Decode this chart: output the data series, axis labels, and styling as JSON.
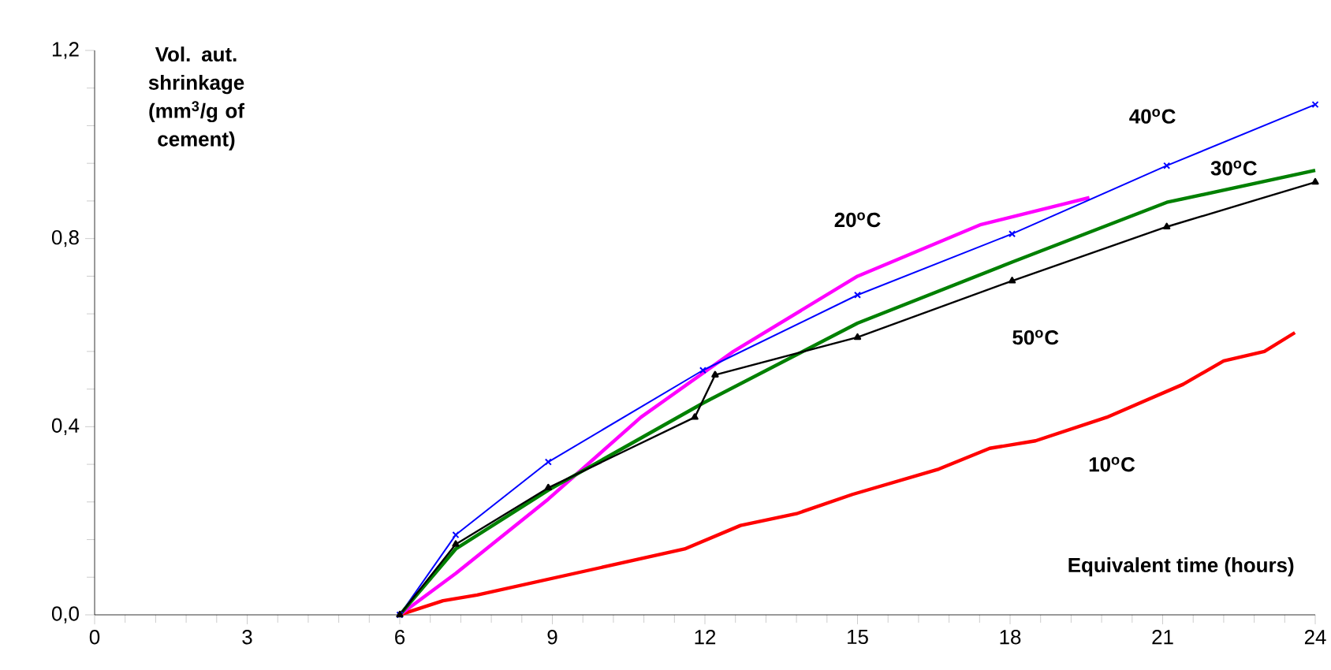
{
  "chart_data": {
    "type": "line",
    "ylabel": "Vol. aut. shrinkage (mm$^{3}$/g of cement)",
    "xlabel": "Equivalent time (hours)",
    "xlim": [
      0,
      24
    ],
    "ylim": [
      0,
      1.2
    ],
    "xticks": [
      0,
      3,
      6,
      9,
      12,
      15,
      18,
      21,
      24
    ],
    "yticks": [
      {
        "value": 0,
        "label": "0,0"
      },
      {
        "value": 0.4,
        "label": "0,4"
      },
      {
        "value": 0.8,
        "label": "0,8"
      },
      {
        "value": 1.2,
        "label": "1,2"
      }
    ],
    "grid": false,
    "legend": false,
    "series": [
      {
        "name": "10$^{o}$C",
        "color": "#ff0000",
        "marker": "none",
        "x": [
          6,
          6.85,
          7.52,
          11.6,
          12.7,
          13.8,
          14.9,
          16.6,
          17.6,
          18.5,
          19.9,
          21.4,
          22.2,
          23.0,
          23.6
        ],
        "values": [
          0,
          0.03,
          0.042,
          0.14,
          0.19,
          0.215,
          0.256,
          0.31,
          0.354,
          0.37,
          0.42,
          0.49,
          0.54,
          0.56,
          0.6
        ]
      },
      {
        "name": "20$^{o}$C",
        "color": "#ff00ff",
        "marker": "none",
        "x": [
          6,
          7.1,
          8.92,
          10.74,
          12.56,
          15.0,
          17.43,
          19.56
        ],
        "values": [
          0,
          0.088,
          0.246,
          0.42,
          0.56,
          0.72,
          0.83,
          0.887
        ]
      },
      {
        "name": "40$^{o}$C",
        "color": "#0000ff",
        "marker": "cross",
        "x": [
          6,
          7.1,
          8.92,
          11.96,
          15.0,
          18.04,
          21.08,
          24
        ],
        "values": [
          0,
          0.17,
          0.325,
          0.52,
          0.68,
          0.81,
          0.955,
          1.085
        ]
      },
      {
        "name": "30$^{o}$C",
        "color": "#008000",
        "marker": "none",
        "x": [
          6,
          7.1,
          8.92,
          11.96,
          15.0,
          18.04,
          21.08,
          24
        ],
        "values": [
          0,
          0.14,
          0.265,
          0.45,
          0.62,
          0.75,
          0.877,
          0.945
        ]
      },
      {
        "name": "50$^{o}$C",
        "color": "#000000",
        "marker": "triangle",
        "x": [
          6,
          7.1,
          8.92,
          11.8,
          12.2,
          15.0,
          18.04,
          21.08,
          24
        ],
        "values": [
          0,
          0.15,
          0.27,
          0.42,
          0.51,
          0.59,
          0.71,
          0.825,
          0.92
        ]
      }
    ]
  }
}
